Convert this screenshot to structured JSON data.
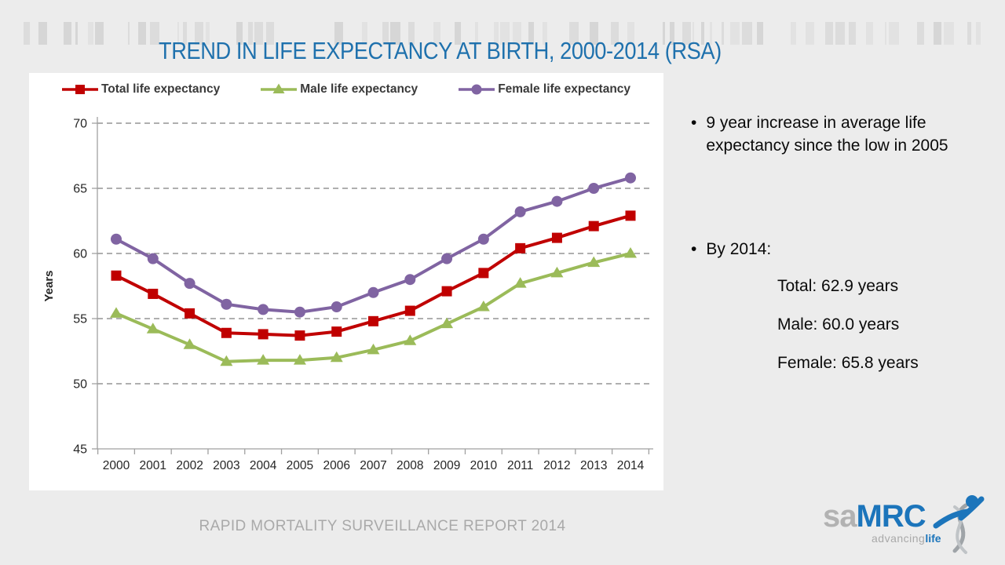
{
  "slide": {
    "title": "TREND IN LIFE EXPECTANCY AT BIRTH, 2000-2014 (RSA)",
    "footer": "RAPID MORTALITY SURVEILLANCE REPORT 2014",
    "background_color": "#ECECEC",
    "title_color": "#1F71AD"
  },
  "bullets": {
    "glyph": "•",
    "bullet1": "9 year increase in average life expectancy since the low in 2005",
    "bullet2": "By 2014:",
    "stats": [
      "Total: 62.9 years",
      "Male: 60.0 years",
      "Female: 65.8 years"
    ]
  },
  "logo": {
    "sa": "sa",
    "mrc": "MRC",
    "tagline_gray": "advancing",
    "tagline_blue": "life",
    "blue": "#1C75BB",
    "gray": "#B2B2B2"
  },
  "chart_data": {
    "type": "line",
    "title": "",
    "xlabel": "",
    "ylabel": "Years",
    "ylim": [
      45,
      70
    ],
    "yticks": [
      45,
      50,
      55,
      60,
      65,
      70
    ],
    "grid": "horizontal-dashed",
    "legend_position": "top",
    "x": [
      2000,
      2001,
      2002,
      2003,
      2004,
      2005,
      2006,
      2007,
      2008,
      2009,
      2010,
      2011,
      2012,
      2013,
      2014
    ],
    "series": [
      {
        "name": "Total life expectancy",
        "color": "#C00000",
        "marker": "square",
        "values": [
          58.3,
          56.9,
          55.4,
          53.9,
          53.8,
          53.7,
          54.0,
          54.8,
          55.6,
          57.1,
          58.5,
          60.4,
          61.2,
          62.1,
          62.9
        ]
      },
      {
        "name": "Male life expectancy",
        "color": "#9BBB59",
        "marker": "triangle",
        "values": [
          55.4,
          54.2,
          53.0,
          51.7,
          51.8,
          51.8,
          52.0,
          52.6,
          53.3,
          54.6,
          55.9,
          57.7,
          58.5,
          59.3,
          60.0
        ]
      },
      {
        "name": "Female life expectancy",
        "color": "#8064A2",
        "marker": "circle",
        "values": [
          61.1,
          59.6,
          57.7,
          56.1,
          55.7,
          55.5,
          55.9,
          57.0,
          58.0,
          59.6,
          61.1,
          63.2,
          64.0,
          65.0,
          65.8
        ]
      }
    ]
  }
}
